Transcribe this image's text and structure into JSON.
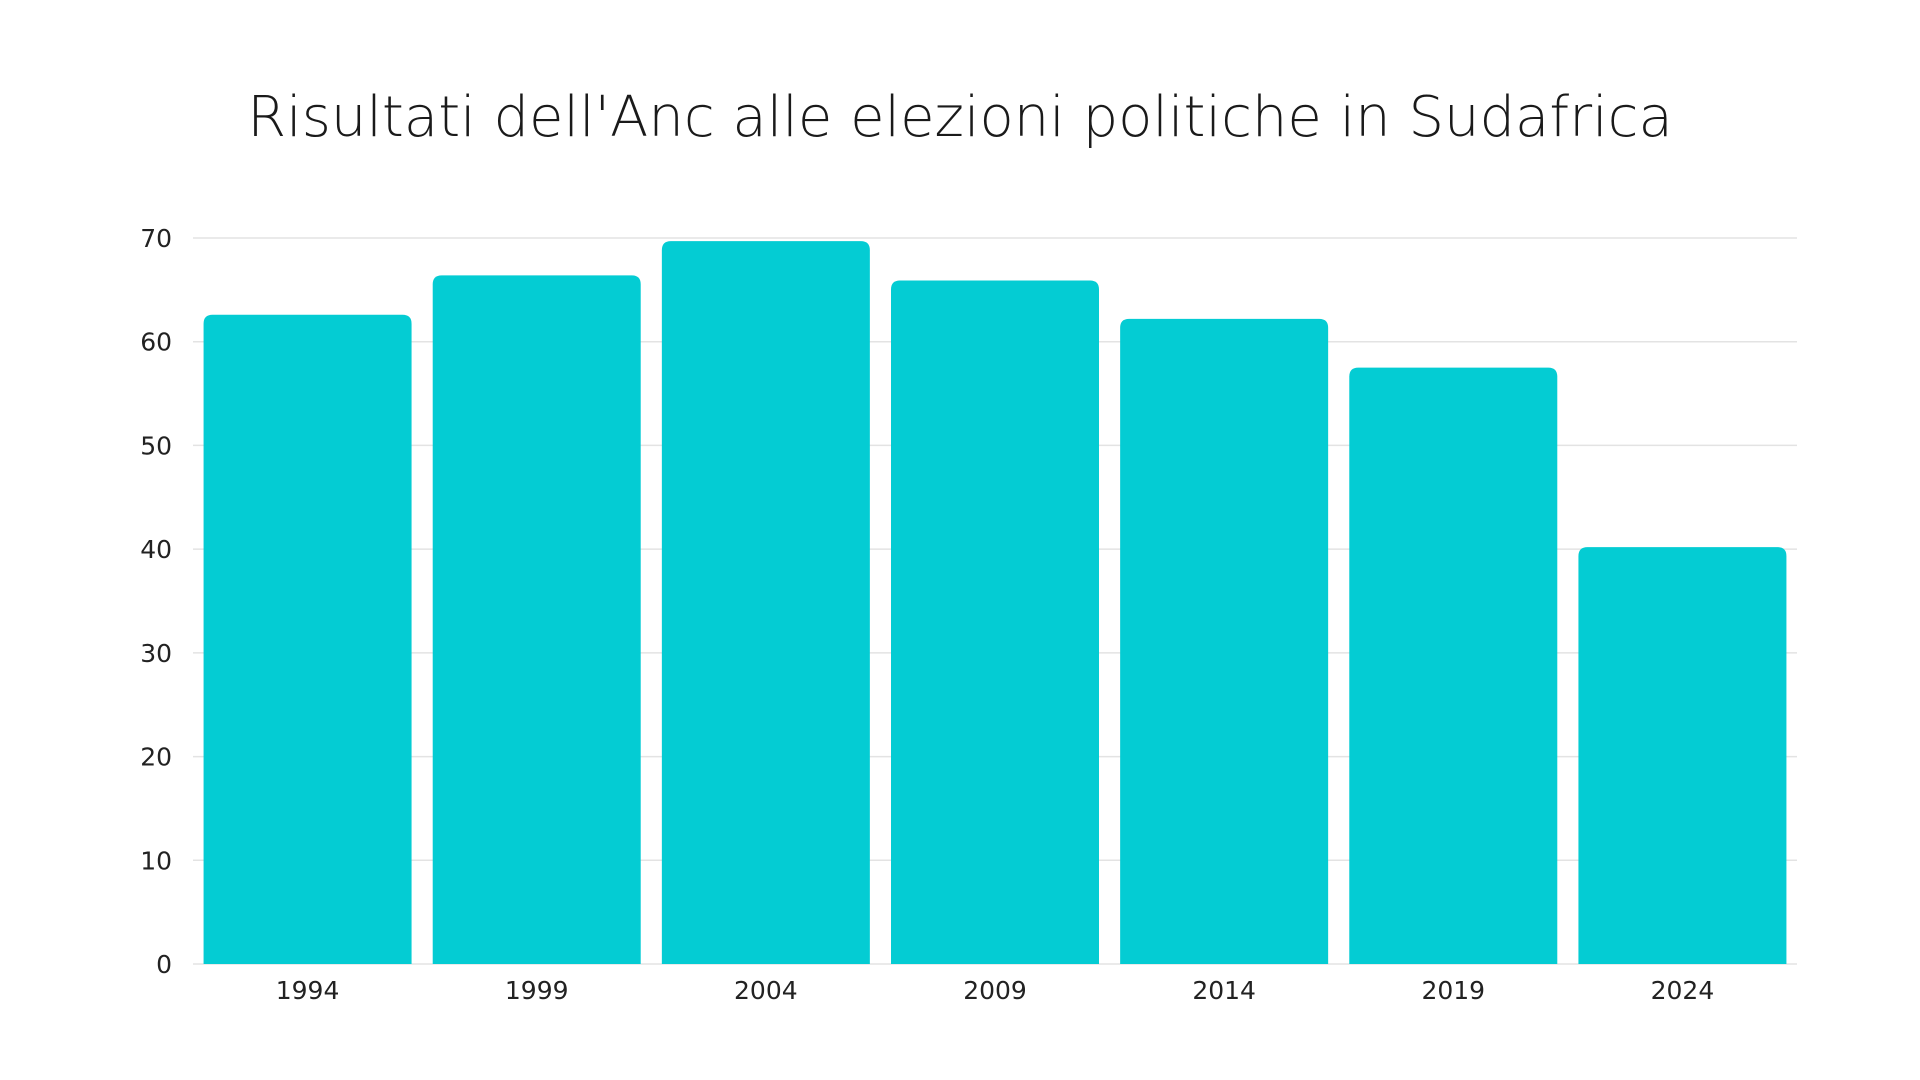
{
  "chart_data": {
    "type": "bar",
    "title": "Risultati dell'Anc alle elezioni politiche in Sudafrica",
    "xlabel": "",
    "ylabel": "",
    "categories": [
      "1994",
      "1999",
      "2004",
      "2009",
      "2014",
      "2019",
      "2024"
    ],
    "values": [
      62.6,
      66.4,
      69.7,
      65.9,
      62.2,
      57.5,
      40.2
    ],
    "ylim": [
      0,
      70
    ],
    "yticks": [
      "0",
      "10",
      "20",
      "30",
      "40",
      "50",
      "60",
      "70"
    ],
    "grid": true,
    "legend": "none",
    "bar_color": "#04CCD3",
    "grid_color": "#E3E3E3"
  }
}
